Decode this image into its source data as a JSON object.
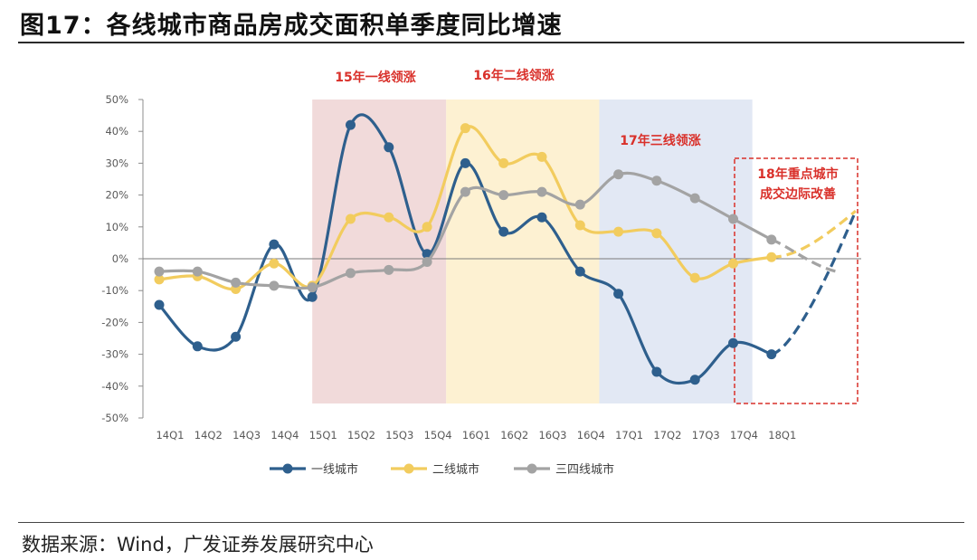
{
  "figure": {
    "title": "图17：各线城市商品房成交面积单季度同比增速",
    "source": "数据来源：Wind，广发证券发展研究中心"
  },
  "chart_data": {
    "type": "line",
    "categories": [
      "14Q1",
      "14Q2",
      "14Q3",
      "14Q4",
      "15Q1",
      "15Q2",
      "15Q3",
      "15Q4",
      "16Q1",
      "16Q2",
      "16Q3",
      "16Q4",
      "17Q1",
      "17Q2",
      "17Q3",
      "17Q4",
      "18Q1"
    ],
    "series": [
      {
        "name": "一线城市",
        "color": "#2e5f8d",
        "values": [
          -14.5,
          -27.5,
          -24.5,
          4.5,
          -12,
          42,
          35,
          1.5,
          30,
          8.5,
          13,
          -4,
          -11,
          -35.5,
          -38,
          -26.5,
          -30
        ]
      },
      {
        "name": "二线城市",
        "color": "#f2cc5e",
        "values": [
          -6.5,
          -5.5,
          -9.5,
          -1.5,
          -8.5,
          12.5,
          13,
          10,
          41,
          30,
          32,
          10.5,
          8.5,
          8,
          -6,
          -1.5,
          0.5
        ]
      },
      {
        "name": "三四线城市",
        "color": "#a3a3a3",
        "values": [
          -4,
          -4,
          -7.5,
          -8.5,
          -9,
          -4.5,
          -3.5,
          -1,
          21,
          20,
          21,
          17,
          26.5,
          24.5,
          19,
          12.5,
          6
        ]
      }
    ],
    "projections": [
      {
        "series": "一线城市",
        "points": [
          [
            16,
            -30
          ],
          [
            18.2,
            15
          ]
        ]
      },
      {
        "series": "二线城市",
        "points": [
          [
            16,
            0.5
          ],
          [
            18.2,
            15
          ]
        ]
      },
      {
        "series": "三四线城市",
        "points": [
          [
            16,
            6
          ],
          [
            17.7,
            -4
          ]
        ]
      }
    ],
    "ylim": [
      -50,
      50
    ],
    "yticks": [
      -50,
      -40,
      -30,
      -20,
      -10,
      0,
      10,
      20,
      30,
      40,
      50
    ],
    "ytick_labels": [
      "-50%",
      "-40%",
      "-30%",
      "-20%",
      "-10%",
      "0%",
      "10%",
      "20%",
      "30%",
      "40%",
      "50%"
    ],
    "xlabel": "",
    "ylabel": "",
    "grid": false,
    "legend_position": "bottom-center",
    "shaded_regions": [
      {
        "label": "15年一线领涨",
        "from": 4,
        "to": 7.5,
        "color": "#f1dada"
      },
      {
        "label": "16年二线领涨",
        "from": 7.5,
        "to": 11.5,
        "color": "#fdf1d2"
      },
      {
        "label": "17年三线领涨",
        "from": 11.5,
        "to": 15.5,
        "color": "#e2e8f4"
      }
    ],
    "highlight_box": {
      "label_lines": [
        "18年重点城市",
        "成交边际改善"
      ],
      "color": "#d9302a"
    }
  }
}
